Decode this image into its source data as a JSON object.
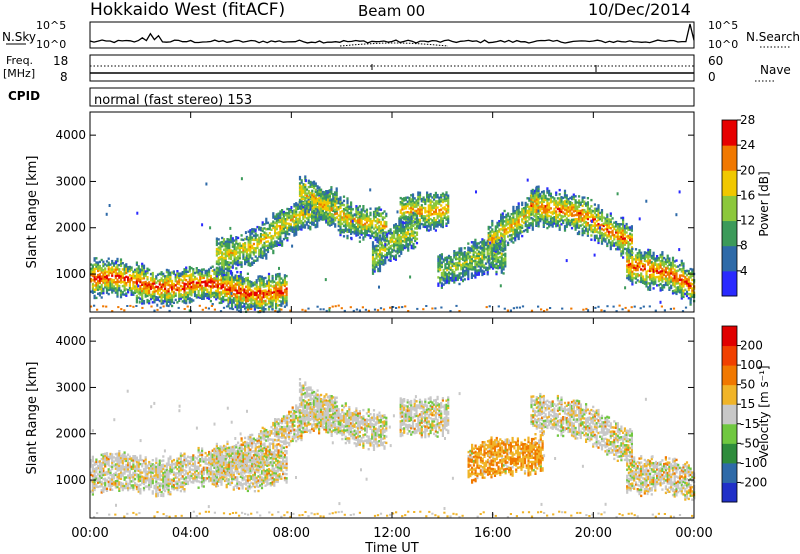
{
  "header": {
    "title": "Hokkaido West (fitACF)",
    "beam": "Beam 00",
    "date": "10/Dec/2014"
  },
  "noise_panel": {
    "left_label": "N.Sky",
    "right_label": "N.Search",
    "ticks_top": "10^5",
    "ticks_bottom": "10^0"
  },
  "freq_panel": {
    "left_label_1": "Freq.",
    "left_label_2": "[MHz]",
    "left_ticks": [
      "18",
      "8"
    ],
    "right_label": "Nave",
    "right_ticks": [
      "60",
      "0"
    ],
    "cpid_label": "CPID",
    "cpid_text": "normal (fast stereo) 153"
  },
  "chart_data": [
    {
      "type": "heatmap",
      "quantity": "Power",
      "ylabel": "Slant Range [km]",
      "ylim": [
        180,
        4500
      ],
      "yticks": [
        "1000",
        "2000",
        "3000",
        "4000"
      ],
      "colorbar_label": "Power [dB]",
      "colorbar_ticks": [
        "4",
        "8",
        "12",
        "16",
        "20",
        "24",
        "28"
      ],
      "colorbar_colors": [
        "#2a2aff",
        "#2e6aa8",
        "#3c9a5a",
        "#8cc83c",
        "#f0c800",
        "#f07800",
        "#e60000"
      ],
      "echo_bands": [
        {
          "t0": 0,
          "t1": 7.8,
          "r0": 900,
          "r1": 600,
          "core": 0.8
        },
        {
          "t0": 5,
          "t1": 9.8,
          "r0": 1300,
          "r1": 2600,
          "core": 0.5
        },
        {
          "t0": 8.3,
          "t1": 11.8,
          "r0": 2700,
          "r1": 1950,
          "core": 0.55
        },
        {
          "t0": 12.3,
          "t1": 14.2,
          "r0": 2300,
          "r1": 2500,
          "core": 0.6
        },
        {
          "t0": 11.2,
          "t1": 13,
          "r0": 1300,
          "r1": 2000,
          "core": 0.4
        },
        {
          "t0": 13.8,
          "t1": 16.5,
          "r0": 1150,
          "r1": 1400,
          "core": 0.35
        },
        {
          "t0": 15.8,
          "t1": 17.8,
          "r0": 1600,
          "r1": 2600,
          "core": 0.55
        },
        {
          "t0": 17.5,
          "t1": 21.5,
          "r0": 2600,
          "r1": 1800,
          "core": 0.7
        },
        {
          "t0": 21.3,
          "t1": 24,
          "r0": 1300,
          "r1": 700,
          "core": 0.75
        }
      ]
    },
    {
      "type": "heatmap",
      "quantity": "Velocity",
      "ylabel": "Slant Range [km]",
      "ylim": [
        180,
        4500
      ],
      "yticks": [
        "1000",
        "2000",
        "3000",
        "4000"
      ],
      "xlabel": "Time UT",
      "xticks": [
        "00:00",
        "04:00",
        "08:00",
        "12:00",
        "16:00",
        "20:00",
        "00:00"
      ],
      "xlim_hours": [
        0,
        24
      ],
      "colorbar_label": "Velocity [m s⁻¹]",
      "colorbar_ticks": [
        "200",
        "100",
        "50",
        "15",
        "-15",
        "-50",
        "-100",
        "-200"
      ],
      "colorbar_colors": [
        "#2030c8",
        "#2e6aa8",
        "#2e8c3c",
        "#70c840",
        "#c8c8c8",
        "#f0b428",
        "#f07800",
        "#f04000",
        "#e00000"
      ],
      "echo_bands": [
        {
          "t0": 0,
          "t1": 7.8,
          "r0": 1100,
          "r1": 1300,
          "core": 0.1
        },
        {
          "t0": 5,
          "t1": 9.8,
          "r0": 1300,
          "r1": 2600,
          "core": 0.15
        },
        {
          "t0": 8.3,
          "t1": 11.8,
          "r0": 2700,
          "r1": 1950,
          "core": 0.05
        },
        {
          "t0": 12.3,
          "t1": 14.2,
          "r0": 2300,
          "r1": 2500,
          "core": 0.05
        },
        {
          "t0": 15,
          "t1": 18,
          "r0": 1300,
          "r1": 1700,
          "core": 0.9
        },
        {
          "t0": 17.5,
          "t1": 21.5,
          "r0": 2600,
          "r1": 1800,
          "core": 0.1
        },
        {
          "t0": 21.3,
          "t1": 24,
          "r0": 1200,
          "r1": 900,
          "core": 0.2
        }
      ]
    }
  ]
}
